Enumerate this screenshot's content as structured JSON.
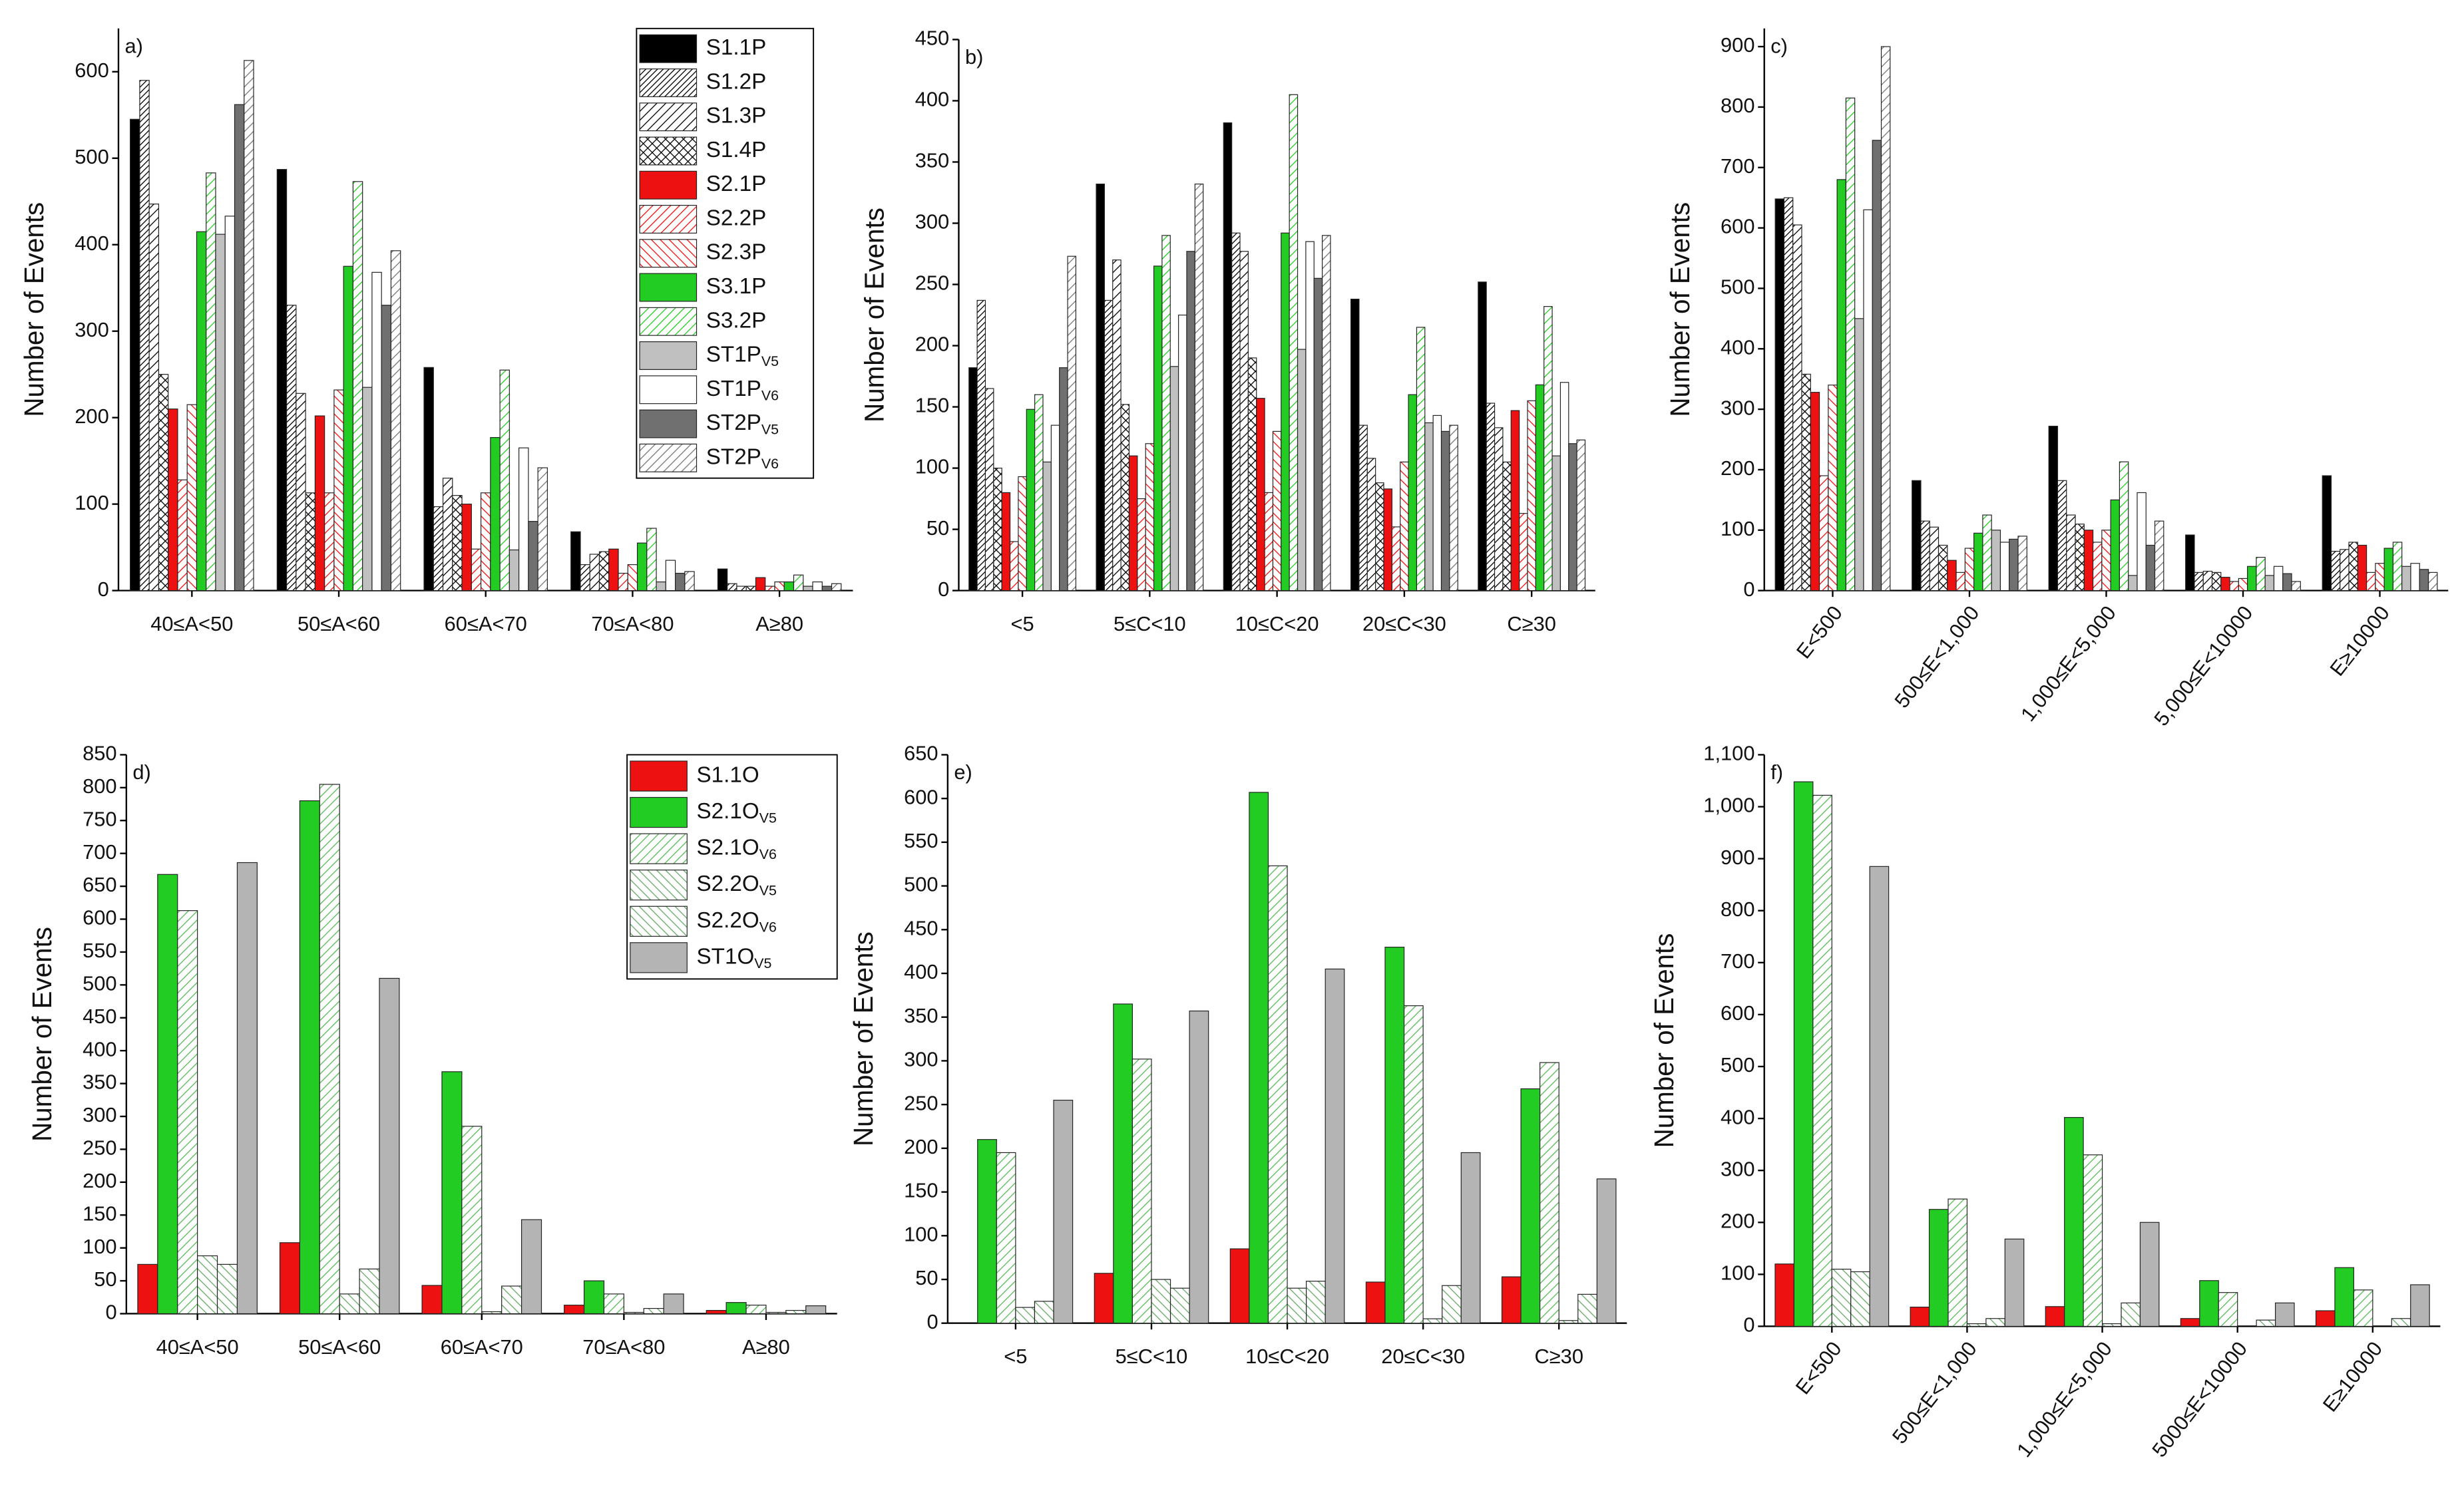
{
  "chart_data": [
    {
      "type": "bar",
      "panel_label": "a)",
      "y_label": "Number of Events",
      "legend": "top-right",
      "rotate_x_labels": false,
      "categories": [
        "40≤A<50",
        "50≤A<60",
        "60≤A<70",
        "70≤A<80",
        "A≥80"
      ],
      "ylim": [
        0,
        650
      ],
      "yticks": [
        0,
        100,
        200,
        300,
        400,
        500,
        600
      ],
      "series": [
        {
          "name": "S1.1P",
          "color": "#000000",
          "pattern": "solid",
          "values": [
            545,
            487,
            258,
            68,
            25
          ]
        },
        {
          "name": "S1.2P",
          "color": "#000000",
          "pattern": "dense",
          "values": [
            590,
            330,
            97,
            30,
            8
          ]
        },
        {
          "name": "S1.3P",
          "color": "#000000",
          "pattern": "forward",
          "values": [
            447,
            228,
            130,
            42,
            5
          ]
        },
        {
          "name": "S1.4P",
          "color": "#000000",
          "pattern": "cross",
          "values": [
            250,
            113,
            110,
            45,
            5
          ]
        },
        {
          "name": "S2.1P",
          "color": "#ee1111",
          "pattern": "solid",
          "values": [
            210,
            202,
            100,
            48,
            15
          ]
        },
        {
          "name": "S2.2P",
          "color": "#ee1111",
          "pattern": "forward",
          "values": [
            128,
            113,
            48,
            20,
            5
          ]
        },
        {
          "name": "S2.3P",
          "color": "#ee1111",
          "pattern": "backward",
          "values": [
            215,
            232,
            113,
            30,
            10
          ]
        },
        {
          "name": "S3.1P",
          "color": "#22cc22",
          "pattern": "solid",
          "values": [
            415,
            375,
            177,
            55,
            10
          ]
        },
        {
          "name": "S3.2P",
          "color": "#22cc22",
          "pattern": "forward",
          "values": [
            483,
            473,
            255,
            72,
            18
          ]
        },
        {
          "name": "ST1P",
          "name_sub": "V5",
          "color": "#c0c0c0",
          "pattern": "solid",
          "values": [
            412,
            235,
            47,
            10,
            5
          ]
        },
        {
          "name": "ST1P",
          "name_sub": "V6",
          "color": "#ffffff",
          "pattern": "solid",
          "values": [
            433,
            368,
            165,
            35,
            10
          ]
        },
        {
          "name": "ST2P",
          "name_sub": "V5",
          "color": "#707070",
          "pattern": "solid",
          "values": [
            562,
            330,
            80,
            20,
            5
          ]
        },
        {
          "name": "ST2P",
          "name_sub": "V6",
          "color": "#777777",
          "pattern": "forward",
          "values": [
            613,
            393,
            142,
            22,
            8
          ]
        }
      ]
    },
    {
      "type": "bar",
      "panel_label": "b)",
      "y_label": "Number of Events",
      "rotate_x_labels": false,
      "categories": [
        "<5",
        "5≤C<10",
        "10≤C<20",
        "20≤C<30",
        "C≥30"
      ],
      "ylim": [
        0,
        450
      ],
      "yticks": [
        0,
        50,
        100,
        150,
        200,
        250,
        300,
        350,
        400,
        450
      ],
      "series": [
        {
          "color": "#000000",
          "pattern": "solid",
          "values": [
            182,
            332,
            382,
            238,
            252
          ]
        },
        {
          "color": "#000000",
          "pattern": "dense",
          "values": [
            237,
            237,
            292,
            135,
            153
          ]
        },
        {
          "color": "#000000",
          "pattern": "forward",
          "values": [
            165,
            270,
            277,
            108,
            133
          ]
        },
        {
          "color": "#000000",
          "pattern": "cross",
          "values": [
            100,
            152,
            190,
            88,
            105
          ]
        },
        {
          "color": "#ee1111",
          "pattern": "solid",
          "values": [
            80,
            110,
            157,
            83,
            147
          ]
        },
        {
          "color": "#ee1111",
          "pattern": "forward",
          "values": [
            40,
            75,
            80,
            52,
            63
          ]
        },
        {
          "color": "#ee1111",
          "pattern": "backward",
          "values": [
            93,
            120,
            130,
            105,
            155
          ]
        },
        {
          "color": "#22cc22",
          "pattern": "solid",
          "values": [
            148,
            265,
            292,
            160,
            168
          ]
        },
        {
          "color": "#22cc22",
          "pattern": "forward",
          "values": [
            160,
            290,
            405,
            215,
            232
          ]
        },
        {
          "color": "#c0c0c0",
          "pattern": "solid",
          "values": [
            105,
            183,
            197,
            137,
            110
          ]
        },
        {
          "color": "#ffffff",
          "pattern": "solid",
          "values": [
            135,
            225,
            285,
            143,
            170
          ]
        },
        {
          "color": "#707070",
          "pattern": "solid",
          "values": [
            182,
            277,
            255,
            130,
            120
          ]
        },
        {
          "color": "#777777",
          "pattern": "forward",
          "values": [
            273,
            332,
            290,
            135,
            123
          ]
        }
      ]
    },
    {
      "type": "bar",
      "panel_label": "c)",
      "y_label": "Number of Events",
      "rotate_x_labels": true,
      "categories": [
        "E<500",
        "500≤E<1,000",
        "1,000≤E<5,000",
        "5,000≤E<10000",
        "E≥10000"
      ],
      "ylim": [
        0,
        930
      ],
      "yticks": [
        0,
        100,
        200,
        300,
        400,
        500,
        600,
        700,
        800,
        900
      ],
      "series": [
        {
          "color": "#000000",
          "pattern": "solid",
          "values": [
            648,
            182,
            272,
            92,
            190
          ]
        },
        {
          "color": "#000000",
          "pattern": "dense",
          "values": [
            650,
            115,
            182,
            30,
            65
          ]
        },
        {
          "color": "#000000",
          "pattern": "forward",
          "values": [
            605,
            105,
            125,
            32,
            68
          ]
        },
        {
          "color": "#000000",
          "pattern": "cross",
          "values": [
            358,
            75,
            110,
            30,
            80
          ]
        },
        {
          "color": "#ee1111",
          "pattern": "solid",
          "values": [
            328,
            50,
            100,
            22,
            75
          ]
        },
        {
          "color": "#ee1111",
          "pattern": "forward",
          "values": [
            190,
            30,
            80,
            15,
            30
          ]
        },
        {
          "color": "#ee1111",
          "pattern": "backward",
          "values": [
            340,
            70,
            100,
            20,
            45
          ]
        },
        {
          "color": "#22cc22",
          "pattern": "solid",
          "values": [
            680,
            95,
            150,
            40,
            70
          ]
        },
        {
          "color": "#22cc22",
          "pattern": "forward",
          "values": [
            815,
            125,
            213,
            55,
            80
          ]
        },
        {
          "color": "#c0c0c0",
          "pattern": "solid",
          "values": [
            450,
            100,
            25,
            25,
            40
          ]
        },
        {
          "color": "#ffffff",
          "pattern": "solid",
          "values": [
            630,
            80,
            162,
            40,
            45
          ]
        },
        {
          "color": "#707070",
          "pattern": "solid",
          "values": [
            745,
            85,
            75,
            28,
            35
          ]
        },
        {
          "color": "#777777",
          "pattern": "forward",
          "values": [
            900,
            90,
            115,
            15,
            30
          ]
        }
      ]
    },
    {
      "type": "bar",
      "panel_label": "d)",
      "y_label": "Number of Events",
      "legend": "top-right",
      "rotate_x_labels": false,
      "categories": [
        "40≤A<50",
        "50≤A<60",
        "60≤A<70",
        "70≤A<80",
        "A≥80"
      ],
      "ylim": [
        0,
        850
      ],
      "yticks": [
        0,
        50,
        100,
        150,
        200,
        250,
        300,
        350,
        400,
        450,
        500,
        550,
        600,
        650,
        700,
        750,
        800,
        850
      ],
      "series": [
        {
          "name": "S1.1O",
          "color": "#ee1111",
          "pattern": "solid",
          "values": [
            75,
            108,
            43,
            13,
            5
          ]
        },
        {
          "name": "S2.1O",
          "name_sub": "V5",
          "color": "#22cc22",
          "pattern": "solid",
          "values": [
            668,
            780,
            368,
            50,
            17
          ]
        },
        {
          "name": "S2.1O",
          "name_sub": "V6",
          "color": "#55bb55",
          "pattern": "forward",
          "values": [
            613,
            805,
            285,
            30,
            13
          ]
        },
        {
          "name": "S2.2O",
          "name_sub": "V5",
          "color": "#66aa66",
          "pattern": "backward",
          "values": [
            88,
            30,
            3,
            2,
            2
          ]
        },
        {
          "name": "S2.2O",
          "name_sub": "V6",
          "color": "#66aa66",
          "pattern": "backward",
          "values": [
            75,
            68,
            42,
            8,
            5
          ]
        },
        {
          "name": "ST1O",
          "name_sub": "V5",
          "color": "#b4b4b4",
          "pattern": "solid",
          "values": [
            686,
            510,
            143,
            30,
            12
          ]
        }
      ]
    },
    {
      "type": "bar",
      "panel_label": "e)",
      "y_label": "Number of Events",
      "rotate_x_labels": false,
      "categories": [
        "<5",
        "5≤C<10",
        "10≤C<20",
        "20≤C<30",
        "C≥30"
      ],
      "ylim": [
        0,
        650
      ],
      "yticks": [
        0,
        50,
        100,
        150,
        200,
        250,
        300,
        350,
        400,
        450,
        500,
        550,
        600,
        650
      ],
      "series": [
        {
          "color": "#ee1111",
          "pattern": "solid",
          "values": [
            0,
            57,
            85,
            47,
            53
          ]
        },
        {
          "color": "#22cc22",
          "pattern": "solid",
          "values": [
            210,
            365,
            607,
            430,
            268
          ]
        },
        {
          "color": "#55bb55",
          "pattern": "forward",
          "values": [
            195,
            302,
            523,
            363,
            298
          ]
        },
        {
          "color": "#66aa66",
          "pattern": "backward",
          "values": [
            18,
            50,
            40,
            5,
            3
          ]
        },
        {
          "color": "#66aa66",
          "pattern": "backward",
          "values": [
            25,
            40,
            48,
            43,
            33
          ]
        },
        {
          "color": "#b4b4b4",
          "pattern": "solid",
          "values": [
            255,
            357,
            405,
            195,
            165
          ]
        }
      ]
    },
    {
      "type": "bar",
      "panel_label": "f)",
      "y_label": "Number of Events",
      "rotate_x_labels": true,
      "categories": [
        "E<500",
        "500≤E<1,000",
        "1,000≤E<5,000",
        "5000≤E<10000",
        "E≥10000"
      ],
      "ylim": [
        0,
        1100
      ],
      "yticks": [
        0,
        100,
        200,
        300,
        400,
        500,
        600,
        700,
        800,
        900,
        {
          "value": 1000,
          "label": "1,000"
        },
        {
          "value": 1100,
          "label": "1,100"
        }
      ],
      "series": [
        {
          "color": "#ee1111",
          "pattern": "solid",
          "values": [
            120,
            37,
            38,
            15,
            30
          ]
        },
        {
          "color": "#22cc22",
          "pattern": "solid",
          "values": [
            1048,
            225,
            402,
            88,
            113
          ]
        },
        {
          "color": "#55bb55",
          "pattern": "forward",
          "values": [
            1022,
            245,
            330,
            65,
            70
          ]
        },
        {
          "color": "#66aa66",
          "pattern": "backward",
          "values": [
            110,
            5,
            5,
            0,
            0
          ]
        },
        {
          "color": "#66aa66",
          "pattern": "backward",
          "values": [
            105,
            15,
            45,
            12,
            15
          ]
        },
        {
          "color": "#b4b4b4",
          "pattern": "solid",
          "values": [
            885,
            168,
            200,
            45,
            80
          ]
        }
      ]
    }
  ]
}
